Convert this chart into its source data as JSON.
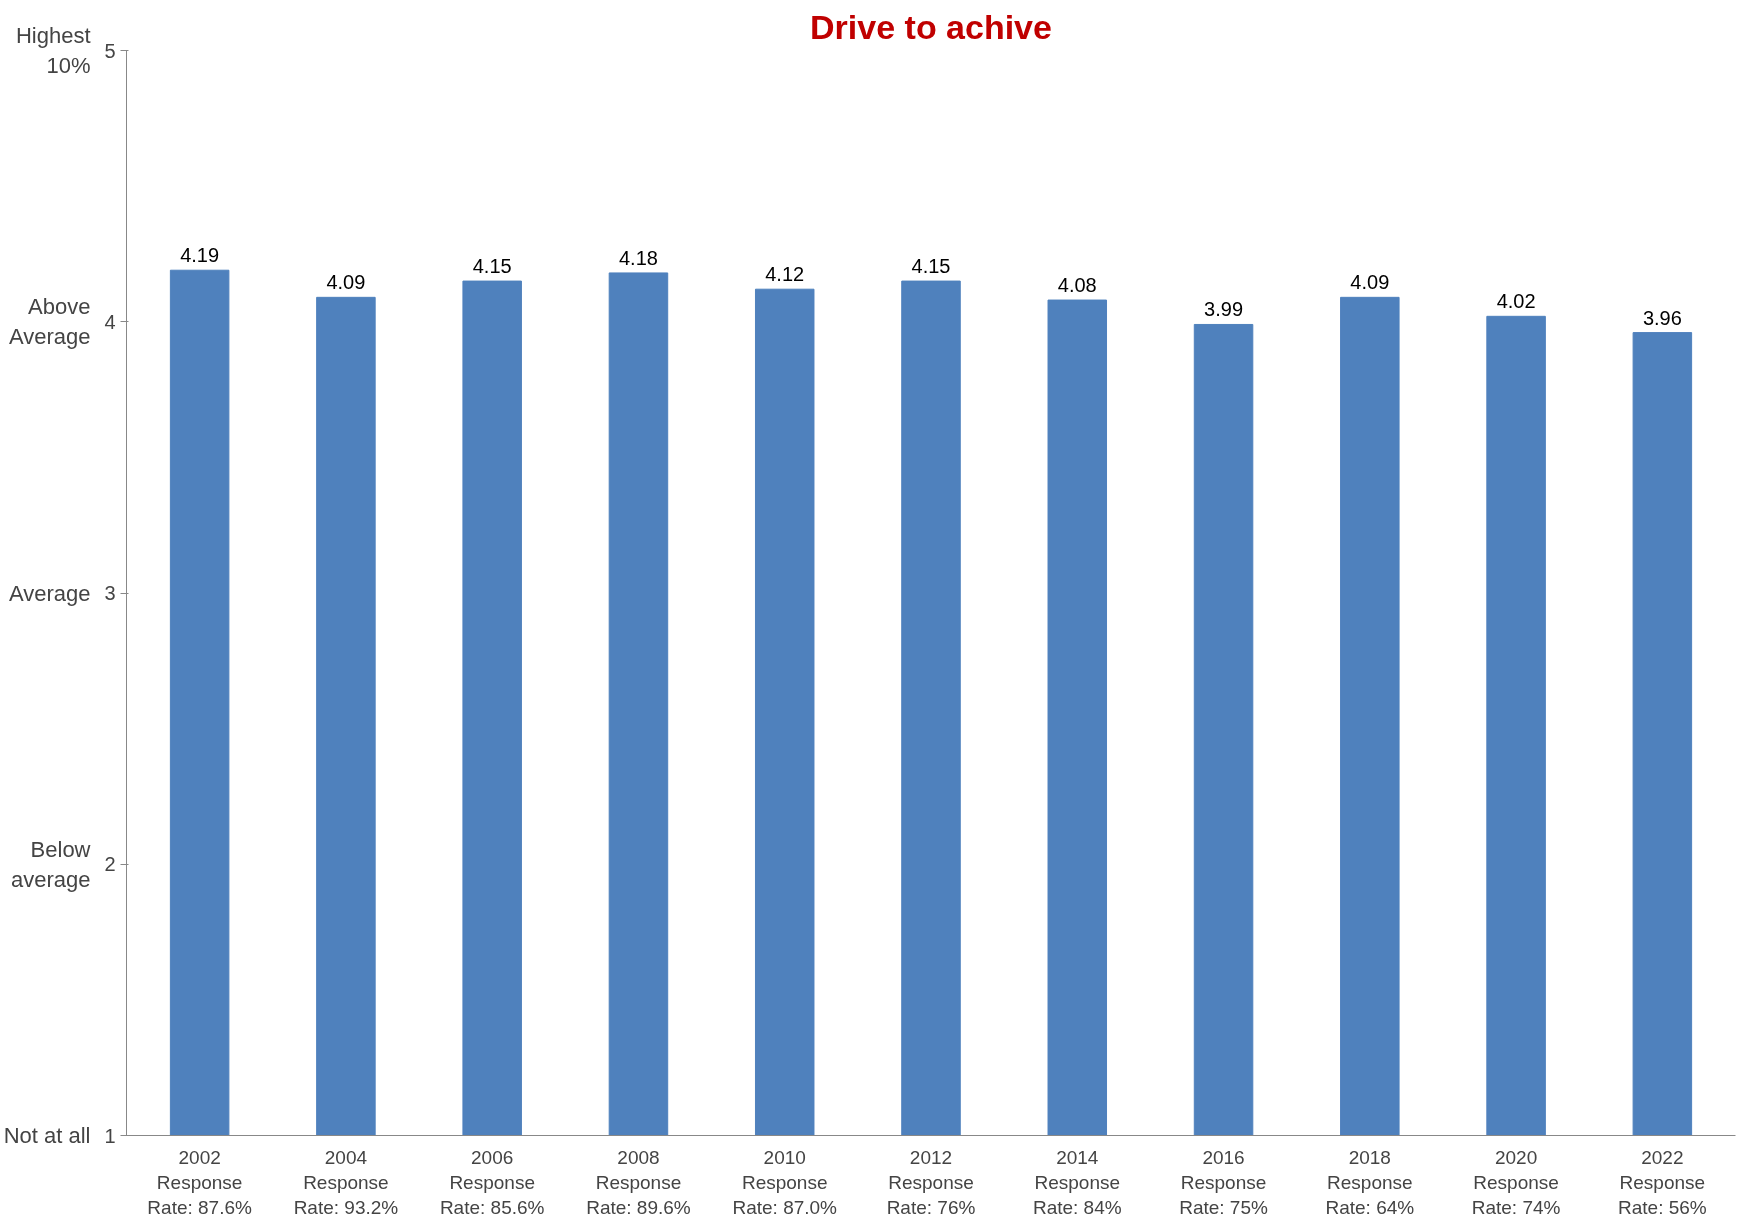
{
  "chart_data": {
    "type": "bar",
    "title": "Drive to achive",
    "categories": [
      "2002\nResponse\nRate: 87.6%",
      "2004\nResponse\nRate: 93.2%",
      "2006\nResponse\nRate: 85.6%",
      "2008\nResponse\nRate: 89.6%",
      "2010\nResponse\nRate: 87.0%",
      "2012\nResponse\nRate: 76%",
      "2014\nResponse\nRate: 84%",
      "2016\nResponse\nRate: 75%",
      "2018\nResponse\nRate: 64%",
      "2020\nResponse\nRate: 74%",
      "2022\nResponse\nRate: 56%"
    ],
    "values": [
      4.19,
      4.09,
      4.15,
      4.18,
      4.12,
      4.15,
      4.08,
      3.99,
      4.09,
      4.02,
      3.96
    ],
    "color": "#4f81bd",
    "ylim": [
      1,
      5
    ],
    "yticks": [
      1,
      2,
      3,
      4,
      5
    ],
    "grid": false,
    "data_labels": true,
    "annotations": [
      "Highest\n10%",
      "Above\nAverage",
      "Average",
      "Below\naverage",
      "Not at all"
    ]
  }
}
